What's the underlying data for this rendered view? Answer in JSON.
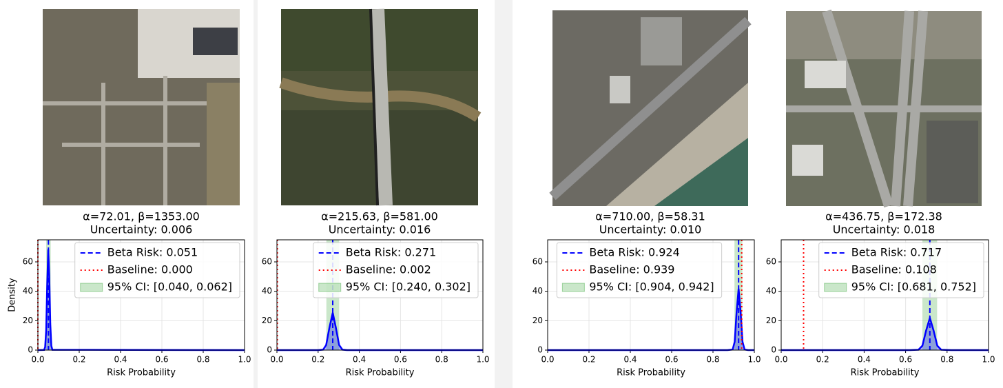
{
  "chart_data": [
    {
      "type": "line",
      "title": "α=72.01, β=1353.00",
      "subtitle": "Uncertainty: 0.006",
      "xlabel": "Risk Probability",
      "ylabel": "Density",
      "xlim": [
        0,
        1
      ],
      "ylim": [
        0,
        75
      ],
      "xticks": [
        {
          "value": 0,
          "label": "0.0"
        },
        {
          "value": 0.2,
          "label": "0.2"
        },
        {
          "value": 0.4,
          "label": "0.4"
        },
        {
          "value": 0.6,
          "label": "0.6"
        },
        {
          "value": 0.8,
          "label": "0.8"
        },
        {
          "value": 1,
          "label": "1.0"
        }
      ],
      "yticks": [
        0,
        20,
        40,
        60
      ],
      "grid": true,
      "legend": "upper right",
      "curve": {
        "color": "#0000ff",
        "x": [
          0,
          0.03,
          0.035,
          0.04,
          0.045,
          0.05,
          0.055,
          0.06,
          0.065,
          0.07,
          1
        ],
        "values": [
          0,
          0.1,
          2,
          13.3,
          43.8,
          68.5,
          50.8,
          18,
          3,
          0.2,
          0
        ]
      },
      "beta_risk": {
        "label": "Beta Risk: 0.051",
        "value": 0.051,
        "color": "#0000ff"
      },
      "baseline": {
        "label": "Baseline: 0.000",
        "value": 0,
        "color": "#ff0000"
      },
      "ci": {
        "label": "95% CI: [0.040, 0.062]",
        "values": [
          0.04,
          0.062
        ],
        "color": "#2ca02c"
      }
    },
    {
      "type": "line",
      "title": "α=215.63, β=581.00",
      "subtitle": "Uncertainty: 0.016",
      "xlabel": "Risk Probability",
      "xlim": [
        0,
        1
      ],
      "ylim": [
        0,
        75
      ],
      "xticks": [
        {
          "value": 0,
          "label": "0.0"
        },
        {
          "value": 0.2,
          "label": "0.2"
        },
        {
          "value": 0.4,
          "label": "0.4"
        },
        {
          "value": 0.6,
          "label": "0.6"
        },
        {
          "value": 0.8,
          "label": "0.8"
        },
        {
          "value": 1,
          "label": "1.0"
        }
      ],
      "yticks": [
        0,
        20,
        40,
        60
      ],
      "grid": true,
      "legend": "upper right",
      "curve": {
        "color": "#0000ff",
        "x": [
          0,
          0.2,
          0.224,
          0.239,
          0.255,
          0.271,
          0.286,
          0.302,
          0.318,
          0.34,
          1
        ],
        "values": [
          0,
          0,
          0.28,
          3.44,
          15.4,
          25.4,
          15.4,
          3.44,
          0.28,
          0,
          0
        ]
      },
      "beta_risk": {
        "label": "Beta Risk: 0.271",
        "value": 0.271,
        "color": "#0000ff"
      },
      "baseline": {
        "label": "Baseline: 0.002",
        "value": 0.002,
        "color": "#ff0000"
      },
      "ci": {
        "label": "95% CI: [0.240, 0.302]",
        "values": [
          0.24,
          0.302
        ],
        "color": "#2ca02c"
      }
    },
    {
      "type": "line",
      "title": "α=710.00, β=58.31",
      "subtitle": "Uncertainty: 0.010",
      "xlabel": "Risk Probability",
      "xlim": [
        0,
        1
      ],
      "ylim": [
        0,
        75
      ],
      "xticks": [
        {
          "value": 0,
          "label": "0.0"
        },
        {
          "value": 0.2,
          "label": "0.2"
        },
        {
          "value": 0.4,
          "label": "0.4"
        },
        {
          "value": 0.6,
          "label": "0.6"
        },
        {
          "value": 0.8,
          "label": "0.8"
        },
        {
          "value": 1,
          "label": "1.0"
        }
      ],
      "yticks": [
        0,
        20,
        40,
        60
      ],
      "grid": true,
      "legend": "upper center",
      "curve": {
        "color": "#0000ff",
        "x": [
          0,
          0.87,
          0.895,
          0.905,
          0.914,
          0.924,
          0.934,
          0.943,
          0.953,
          0.97,
          1
        ],
        "values": [
          0,
          0,
          0.34,
          5.66,
          25.4,
          41.8,
          25.4,
          5.66,
          0.34,
          0,
          0
        ]
      },
      "beta_risk": {
        "label": "Beta Risk: 0.924",
        "value": 0.924,
        "color": "#0000ff"
      },
      "baseline": {
        "label": "Baseline: 0.939",
        "value": 0.939,
        "color": "#ff0000"
      },
      "ci": {
        "label": "95% CI: [0.904, 0.942]",
        "values": [
          0.904,
          0.942
        ],
        "color": "#2ca02c"
      }
    },
    {
      "type": "line",
      "title": "α=436.75, β=172.38",
      "subtitle": "Uncertainty: 0.018",
      "xlabel": "Risk Probability",
      "xlim": [
        0,
        1
      ],
      "ylim": [
        0,
        75
      ],
      "xticks": [
        {
          "value": 0,
          "label": "0.0"
        },
        {
          "value": 0.2,
          "label": "0.2"
        },
        {
          "value": 0.4,
          "label": "0.4"
        },
        {
          "value": 0.6,
          "label": "0.6"
        },
        {
          "value": 0.8,
          "label": "0.8"
        },
        {
          "value": 1,
          "label": "1.0"
        }
      ],
      "yticks": [
        0,
        20,
        40,
        60
      ],
      "grid": true,
      "legend": "upper right",
      "curve": {
        "color": "#0000ff",
        "x": [
          0,
          0.62,
          0.662,
          0.681,
          0.699,
          0.717,
          0.735,
          0.753,
          0.772,
          0.82,
          1
        ],
        "values": [
          0,
          0,
          0.24,
          2.96,
          13.3,
          21.9,
          13.3,
          2.96,
          0.24,
          0,
          0
        ]
      },
      "beta_risk": {
        "label": "Beta Risk: 0.717",
        "value": 0.717,
        "color": "#0000ff"
      },
      "baseline": {
        "label": "Baseline: 0.108",
        "value": 0.108,
        "color": "#ff0000"
      },
      "ci": {
        "label": "95% CI: [0.681, 0.752]",
        "values": [
          0.681,
          0.752
        ],
        "color": "#2ca02c"
      }
    }
  ]
}
